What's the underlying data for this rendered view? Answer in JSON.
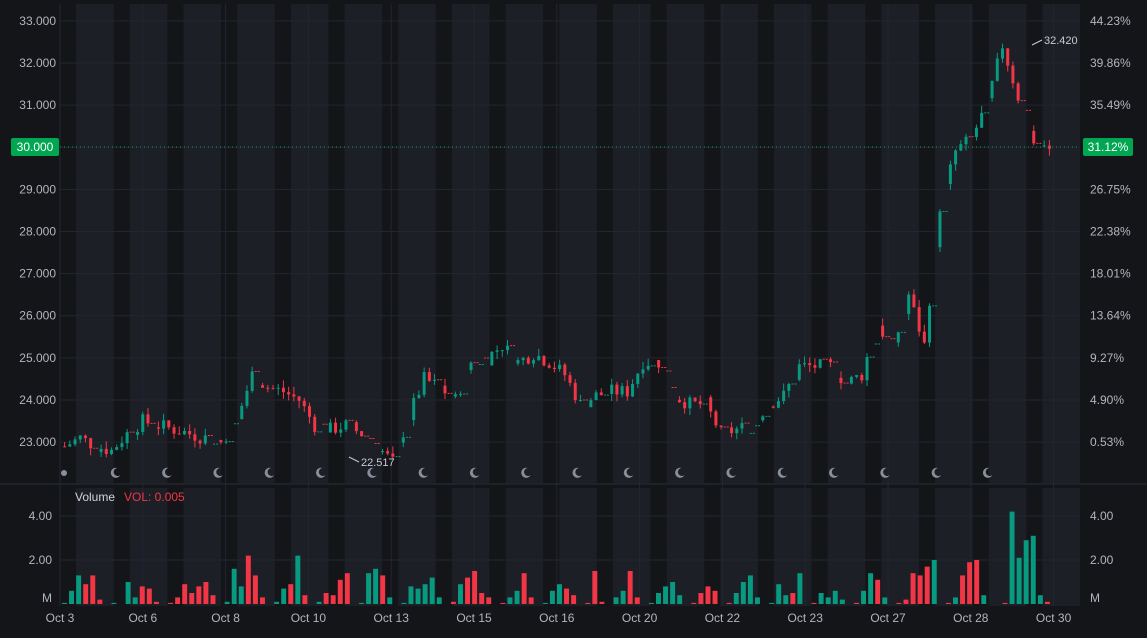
{
  "colors": {
    "background": "#131519",
    "session_shade": "#1c1f26",
    "grid": "#232630",
    "up": "#089981",
    "down": "#f23645",
    "badge": "#00a650",
    "text": "#b2b5be"
  },
  "icons": {
    "session_marker": "moon-icon",
    "first_marker": "sun-icon"
  },
  "volume_label": {
    "title": "Volume",
    "value": "VOL: 0.005"
  },
  "current_price": {
    "price": 30.0,
    "label": "30.000",
    "percent_label": "31.12%"
  },
  "annotations": {
    "high": {
      "value": 32.42,
      "label": "32.420"
    },
    "low": {
      "value": 22.517,
      "label": "22.517"
    }
  },
  "chart_data": [
    {
      "type": "candlestick",
      "title": "",
      "x_ticks": [
        "Oct 3",
        "Oct 6",
        "Oct 8",
        "Oct 10",
        "Oct 13",
        "Oct 15",
        "Oct 16",
        "Oct 20",
        "Oct 22",
        "Oct 23",
        "Oct 27",
        "Oct 28",
        "Oct 30"
      ],
      "y_left_ticks": [
        "23.000",
        "24.000",
        "25.000",
        "26.000",
        "27.000",
        "28.000",
        "29.000",
        "30.000",
        "31.000",
        "32.000",
        "33.000"
      ],
      "y_right_ticks": [
        "0.53%",
        "4.90%",
        "9.27%",
        "13.64%",
        "18.01%",
        "22.38%",
        "26.75%",
        "31.12%",
        "35.49%",
        "39.86%",
        "44.23%"
      ],
      "ylim": [
        22.1,
        33.4
      ],
      "grid": true,
      "series": [
        {
          "trend": [
            [
              0,
              22.9
            ],
            [
              1,
              23.1
            ],
            [
              2,
              22.9
            ],
            [
              3,
              22.8
            ],
            [
              4,
              23.2
            ],
            [
              5,
              23.5
            ],
            [
              6,
              23.4
            ],
            [
              7,
              23.3
            ],
            [
              8,
              23.2
            ],
            [
              9,
              23.1
            ],
            [
              10,
              23.0
            ],
            [
              11,
              23.5
            ],
            [
              12,
              24.6
            ],
            [
              13,
              24.3
            ],
            [
              14,
              24.2
            ],
            [
              15,
              24.0
            ],
            [
              16,
              23.4
            ],
            [
              17,
              23.3
            ],
            [
              18,
              23.4
            ],
            [
              19,
              23.2
            ],
            [
              20,
              22.9
            ],
            [
              21,
              22.52
            ],
            [
              22,
              23.6
            ],
            [
              23,
              24.5
            ],
            [
              24,
              24.3
            ],
            [
              25,
              24.0
            ],
            [
              26,
              24.9
            ],
            [
              27,
              25.0
            ],
            [
              28,
              25.3
            ],
            [
              29,
              24.9
            ],
            [
              30,
              25.1
            ],
            [
              31,
              24.9
            ],
            [
              32,
              24.6
            ],
            [
              33,
              23.9
            ],
            [
              34,
              24.1
            ],
            [
              35,
              24.2
            ],
            [
              36,
              24.2
            ],
            [
              37,
              24.9
            ],
            [
              38,
              24.9
            ],
            [
              39,
              24.1
            ],
            [
              40,
              23.9
            ],
            [
              41,
              23.9
            ],
            [
              42,
              23.2
            ],
            [
              43,
              23.3
            ],
            [
              44,
              23.4
            ],
            [
              45,
              23.9
            ],
            [
              46,
              24.1
            ],
            [
              47,
              24.8
            ],
            [
              48,
              24.8
            ],
            [
              49,
              24.8
            ],
            [
              50,
              24.4
            ],
            [
              51,
              24.6
            ],
            [
              52,
              25.8
            ],
            [
              53,
              25.2
            ],
            [
              54,
              26.5
            ],
            [
              55,
              25.3
            ],
            [
              56,
              28.6
            ],
            [
              57,
              29.9
            ],
            [
              58,
              30.2
            ],
            [
              59,
              31.0
            ],
            [
              60,
              32.42
            ],
            [
              61,
              31.2
            ],
            [
              62,
              30.1
            ],
            [
              63,
              29.9
            ]
          ]
        }
      ],
      "session_count": 19
    },
    {
      "type": "bar",
      "title": "",
      "series_label": "Volume",
      "y_ticks": [
        "4.00",
        "2.00",
        "M"
      ],
      "ylim": [
        0,
        5
      ],
      "bars": [
        [
          0,
          0.05,
          "up"
        ],
        [
          1,
          0.6,
          "up"
        ],
        [
          2,
          1.3,
          "up"
        ],
        [
          3,
          0.9,
          "down"
        ],
        [
          4,
          1.3,
          "down"
        ],
        [
          5,
          0.2,
          "down"
        ],
        [
          7,
          0.05,
          "up"
        ],
        [
          9,
          1.0,
          "up"
        ],
        [
          10,
          0.3,
          "up"
        ],
        [
          11,
          0.8,
          "down"
        ],
        [
          12,
          0.7,
          "down"
        ],
        [
          13,
          0.1,
          "down"
        ],
        [
          15,
          0.05,
          "down"
        ],
        [
          16,
          0.3,
          "down"
        ],
        [
          17,
          0.9,
          "down"
        ],
        [
          18,
          0.5,
          "down"
        ],
        [
          19,
          0.8,
          "down"
        ],
        [
          20,
          1.0,
          "down"
        ],
        [
          21,
          0.4,
          "down"
        ],
        [
          23,
          0.1,
          "up"
        ],
        [
          24,
          1.6,
          "up"
        ],
        [
          25,
          0.8,
          "up"
        ],
        [
          26,
          2.2,
          "down"
        ],
        [
          27,
          1.3,
          "down"
        ],
        [
          28,
          0.3,
          "down"
        ],
        [
          30,
          0.1,
          "up"
        ],
        [
          31,
          0.7,
          "up"
        ],
        [
          32,
          0.9,
          "down"
        ],
        [
          33,
          2.2,
          "up"
        ],
        [
          34,
          0.4,
          "down"
        ],
        [
          36,
          0.1,
          "up"
        ],
        [
          37,
          0.5,
          "down"
        ],
        [
          38,
          0.4,
          "down"
        ],
        [
          39,
          1.1,
          "down"
        ],
        [
          40,
          1.4,
          "down"
        ],
        [
          42,
          0.05,
          "up"
        ],
        [
          43,
          1.4,
          "up"
        ],
        [
          44,
          1.6,
          "up"
        ],
        [
          45,
          1.3,
          "down"
        ],
        [
          46,
          0.3,
          "up"
        ],
        [
          48,
          0.05,
          "up"
        ],
        [
          49,
          0.8,
          "up"
        ],
        [
          50,
          0.7,
          "up"
        ],
        [
          51,
          0.9,
          "up"
        ],
        [
          52,
          1.2,
          "up"
        ],
        [
          53,
          0.3,
          "up"
        ],
        [
          55,
          0.1,
          "down"
        ],
        [
          56,
          0.9,
          "up"
        ],
        [
          57,
          1.2,
          "down"
        ],
        [
          58,
          1.5,
          "down"
        ],
        [
          59,
          0.5,
          "down"
        ],
        [
          60,
          0.3,
          "down"
        ],
        [
          62,
          0.05,
          "down"
        ],
        [
          63,
          0.3,
          "up"
        ],
        [
          64,
          0.6,
          "up"
        ],
        [
          65,
          1.4,
          "down"
        ],
        [
          66,
          0.3,
          "down"
        ],
        [
          68,
          0.05,
          "up"
        ],
        [
          69,
          0.6,
          "up"
        ],
        [
          70,
          0.9,
          "up"
        ],
        [
          71,
          0.7,
          "down"
        ],
        [
          72,
          0.4,
          "down"
        ],
        [
          74,
          0.05,
          "down"
        ],
        [
          75,
          1.5,
          "down"
        ],
        [
          76,
          0.1,
          "down"
        ],
        [
          78,
          0.3,
          "up"
        ],
        [
          79,
          0.6,
          "up"
        ],
        [
          80,
          1.5,
          "down"
        ],
        [
          81,
          0.3,
          "down"
        ],
        [
          83,
          0.05,
          "up"
        ],
        [
          84,
          0.5,
          "up"
        ],
        [
          85,
          0.8,
          "up"
        ],
        [
          86,
          1.0,
          "up"
        ],
        [
          87,
          0.4,
          "up"
        ],
        [
          89,
          0.05,
          "down"
        ],
        [
          90,
          0.5,
          "down"
        ],
        [
          91,
          0.8,
          "down"
        ],
        [
          92,
          0.6,
          "down"
        ],
        [
          94,
          0.05,
          "down"
        ],
        [
          95,
          0.5,
          "up"
        ],
        [
          96,
          1.0,
          "up"
        ],
        [
          97,
          1.3,
          "up"
        ],
        [
          98,
          0.3,
          "up"
        ],
        [
          100,
          0.05,
          "up"
        ],
        [
          101,
          0.9,
          "up"
        ],
        [
          102,
          0.4,
          "up"
        ],
        [
          103,
          0.5,
          "down"
        ],
        [
          104,
          1.4,
          "up"
        ],
        [
          106,
          0.05,
          "down"
        ],
        [
          107,
          0.5,
          "up"
        ],
        [
          108,
          0.3,
          "up"
        ],
        [
          109,
          0.6,
          "up"
        ],
        [
          110,
          0.2,
          "up"
        ],
        [
          112,
          0.05,
          "down"
        ],
        [
          113,
          0.6,
          "up"
        ],
        [
          114,
          1.4,
          "up"
        ],
        [
          115,
          1.1,
          "down"
        ],
        [
          116,
          0.3,
          "up"
        ],
        [
          118,
          0.05,
          "down"
        ],
        [
          119,
          0.2,
          "down"
        ],
        [
          120,
          1.4,
          "down"
        ],
        [
          121,
          1.3,
          "down"
        ],
        [
          122,
          1.7,
          "down"
        ],
        [
          123,
          2.0,
          "up"
        ],
        [
          125,
          0.05,
          "down"
        ],
        [
          126,
          0.3,
          "up"
        ],
        [
          127,
          1.3,
          "down"
        ],
        [
          128,
          1.9,
          "down"
        ],
        [
          129,
          2.0,
          "down"
        ],
        [
          130,
          0.4,
          "up"
        ],
        [
          133,
          0.05,
          "down"
        ],
        [
          134,
          4.2,
          "up"
        ],
        [
          135,
          2.1,
          "up"
        ],
        [
          136,
          2.9,
          "up"
        ],
        [
          137,
          3.1,
          "up"
        ],
        [
          138,
          0.4,
          "up"
        ],
        [
          139,
          0.1,
          "down"
        ]
      ]
    }
  ]
}
